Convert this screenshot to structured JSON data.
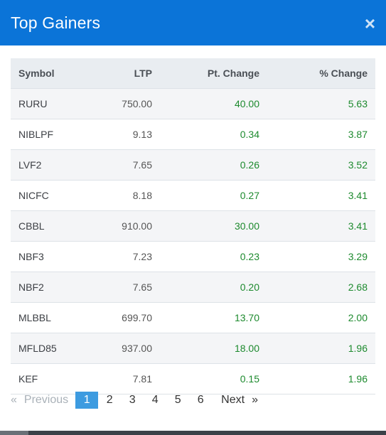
{
  "modal": {
    "title": "Top Gainers",
    "close_glyph": "×"
  },
  "table": {
    "headers": {
      "symbol": "Symbol",
      "ltp": "LTP",
      "pt_change": "Pt. Change",
      "pct_change": "% Change"
    },
    "rows": [
      {
        "symbol": "RURU",
        "ltp": "750.00",
        "pt": "40.00",
        "pct": "5.63"
      },
      {
        "symbol": "NIBLPF",
        "ltp": "9.13",
        "pt": "0.34",
        "pct": "3.87"
      },
      {
        "symbol": "LVF2",
        "ltp": "7.65",
        "pt": "0.26",
        "pct": "3.52"
      },
      {
        "symbol": "NICFC",
        "ltp": "8.18",
        "pt": "0.27",
        "pct": "3.41"
      },
      {
        "symbol": "CBBL",
        "ltp": "910.00",
        "pt": "30.00",
        "pct": "3.41"
      },
      {
        "symbol": "NBF3",
        "ltp": "7.23",
        "pt": "0.23",
        "pct": "3.29"
      },
      {
        "symbol": "NBF2",
        "ltp": "7.65",
        "pt": "0.20",
        "pct": "2.68"
      },
      {
        "symbol": "MLBBL",
        "ltp": "699.70",
        "pt": "13.70",
        "pct": "2.00"
      },
      {
        "symbol": "MFLD85",
        "ltp": "937.00",
        "pt": "18.00",
        "pct": "1.96"
      },
      {
        "symbol": "KEF",
        "ltp": "7.81",
        "pt": "0.15",
        "pct": "1.96"
      }
    ]
  },
  "pagination": {
    "prev_arrow": "«",
    "prev_label": "Previous",
    "pages": [
      "1",
      "2",
      "3",
      "4",
      "5",
      "6"
    ],
    "current_page": "1",
    "next_label": "Next",
    "next_arrow": "»"
  },
  "colors": {
    "header_bg": "#0b74d8",
    "positive": "#1d8a2e",
    "active_page": "#3d9be0"
  }
}
